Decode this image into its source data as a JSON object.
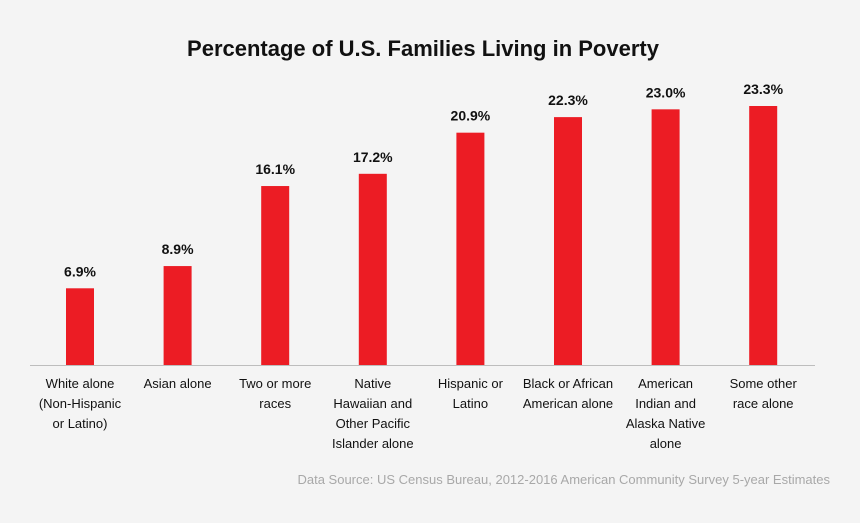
{
  "chart_data": {
    "type": "bar",
    "title": "Percentage of U.S. Families Living in Poverty",
    "categories": [
      "White alone (Non-Hispanic or Latino)",
      "Asian alone",
      "Two or more races",
      "Native Hawaiian and Other Pacific Islander alone",
      "Hispanic or Latino",
      "Black or African American alone",
      "American Indian and Alaska Native alone",
      "Some other race alone"
    ],
    "values": [
      6.9,
      8.9,
      16.1,
      17.2,
      20.9,
      22.3,
      23.0,
      23.3
    ],
    "value_labels": [
      "6.9%",
      "8.9%",
      "16.1%",
      "17.2%",
      "20.9%",
      "22.3%",
      "23.0%",
      "23.3%"
    ],
    "ylim": [
      0,
      23.3
    ],
    "bar_color": "#ec1c24",
    "grid": false,
    "source": "Data Source: US Census Bureau, 2012-2016 American Community Survey 5-year Estimates"
  }
}
